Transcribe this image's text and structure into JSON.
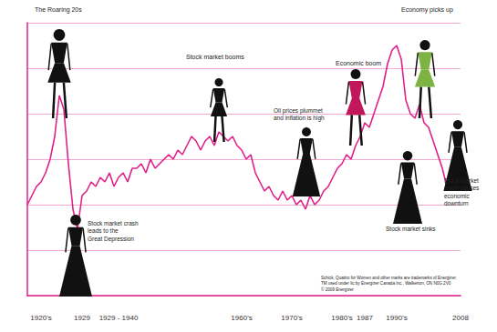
{
  "chart_data": {
    "type": "line",
    "categories": [
      null,
      null,
      null,
      "1920's",
      null,
      null,
      null,
      null,
      null,
      null,
      null,
      null,
      "1929",
      null,
      null,
      null,
      null,
      null,
      null,
      null,
      "1929 - 1940",
      null,
      null,
      null,
      null,
      null,
      null,
      null,
      null,
      null,
      null,
      null,
      null,
      null,
      null,
      null,
      null,
      null,
      null,
      null,
      null,
      null,
      null,
      null,
      null,
      null,
      null,
      "1960's",
      null,
      null,
      null,
      null,
      null,
      null,
      null,
      null,
      null,
      null,
      "1970's",
      null,
      null,
      null,
      null,
      null,
      null,
      null,
      null,
      null,
      null,
      "1980's",
      null,
      null,
      null,
      null,
      "1987",
      null,
      null,
      null,
      null,
      null,
      null,
      "1990's",
      null,
      null,
      null,
      null,
      null,
      null,
      null,
      null,
      null,
      null,
      null,
      null,
      null,
      "2008"
    ],
    "values": [
      100,
      110,
      120,
      125,
      135,
      150,
      175,
      220,
      205,
      145,
      95,
      73,
      110,
      115,
      125,
      120,
      130,
      125,
      135,
      120,
      130,
      135,
      125,
      140,
      140,
      145,
      135,
      150,
      140,
      145,
      150,
      155,
      150,
      160,
      155,
      165,
      175,
      170,
      160,
      170,
      175,
      165,
      180,
      175,
      170,
      175,
      165,
      160,
      150,
      155,
      135,
      125,
      115,
      120,
      110,
      105,
      115,
      105,
      110,
      100,
      105,
      95,
      110,
      100,
      105,
      115,
      120,
      130,
      140,
      145,
      155,
      150,
      165,
      175,
      190,
      185,
      200,
      215,
      230,
      255,
      270,
      275,
      260,
      215,
      200,
      195,
      210,
      190,
      185,
      170,
      155,
      140,
      120,
      null,
      null,
      null
    ],
    "color": "#e0218a",
    "ylim": [
      0,
      300
    ],
    "yticks": [
      0,
      50,
      100,
      150,
      200,
      250,
      300
    ],
    "grid": true,
    "tick_labels": "x",
    "annotations": [
      "The Roaring 20s",
      "Stock market crash\nleads to the\nGreat Depression",
      "Stock market booms",
      "Oil prices plummet\nand inflation is high",
      "Economic boom",
      "Economy picks up",
      "Stock market sinks",
      "Stock market\ncrash causes\neconomic\ndownturn",
      "Schick, Quattro for Women and other marks are trademarks of Energizer.\nTM used under lic by Energizer Canada Inc., Walkerton, ON N0G 2V0\n© 2009 Energizer"
    ]
  }
}
